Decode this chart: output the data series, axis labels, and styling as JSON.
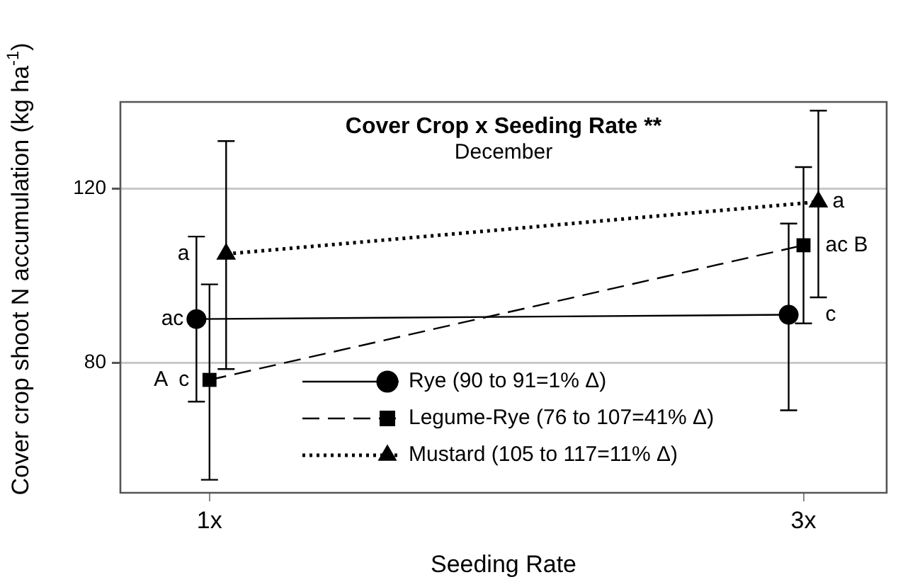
{
  "chart_data": {
    "type": "line",
    "title": "Cover Crop x Seeding Rate **",
    "subtitle": "December",
    "xlabel": "Seeding Rate",
    "ylabel": "Cover crop shoot N accumulation (kg ha$^{-1}$)",
    "xlim": [
      0.7,
      3.28
    ],
    "xticks": [
      {
        "value": 1,
        "label": "1x"
      },
      {
        "value": 3,
        "label": "3x"
      }
    ],
    "ylim": [
      50,
      140
    ],
    "yticks": [
      80,
      120
    ],
    "grid": "y",
    "legend": "bottom",
    "series": [
      {
        "name": "Rye (90 to 91=1% Δ)",
        "color": "#000000",
        "x": [
          0.956,
          2.95
        ],
        "values": [
          90,
          91
        ],
        "errors": [
          [
            71,
            109
          ],
          [
            69,
            112
          ]
        ],
        "marker": "circle",
        "line_style": "solid"
      },
      {
        "name": "Legume-Rye (76 to 107=41% Δ)",
        "color": "#000000",
        "x": [
          1,
          3
        ],
        "values": [
          76,
          107
        ],
        "errors": [
          [
            53,
            98
          ],
          [
            89,
            125
          ]
        ],
        "marker": "square",
        "line_style": "dashed"
      },
      {
        "name": "Mustard (105 to 117=11% Δ)",
        "color": "#000000",
        "x": [
          1.056,
          3.05
        ],
        "values": [
          105,
          117
        ],
        "errors": [
          [
            78.5,
            131
          ],
          [
            95,
            138
          ]
        ],
        "marker": "triangle",
        "line_style": "dotted"
      }
    ],
    "annotations": [
      {
        "text": "ac",
        "x": 0.956,
        "y": 90
      },
      {
        "text": "a",
        "x": 1.056,
        "y": 105
      },
      {
        "text": "A  c",
        "x": 1,
        "y": 76
      },
      {
        "text": "a",
        "x": 3.05,
        "y": 117
      },
      {
        "text": "ac B",
        "x": 3,
        "y": 107
      },
      {
        "text": "c",
        "x": 2.95,
        "y": 91
      }
    ]
  }
}
